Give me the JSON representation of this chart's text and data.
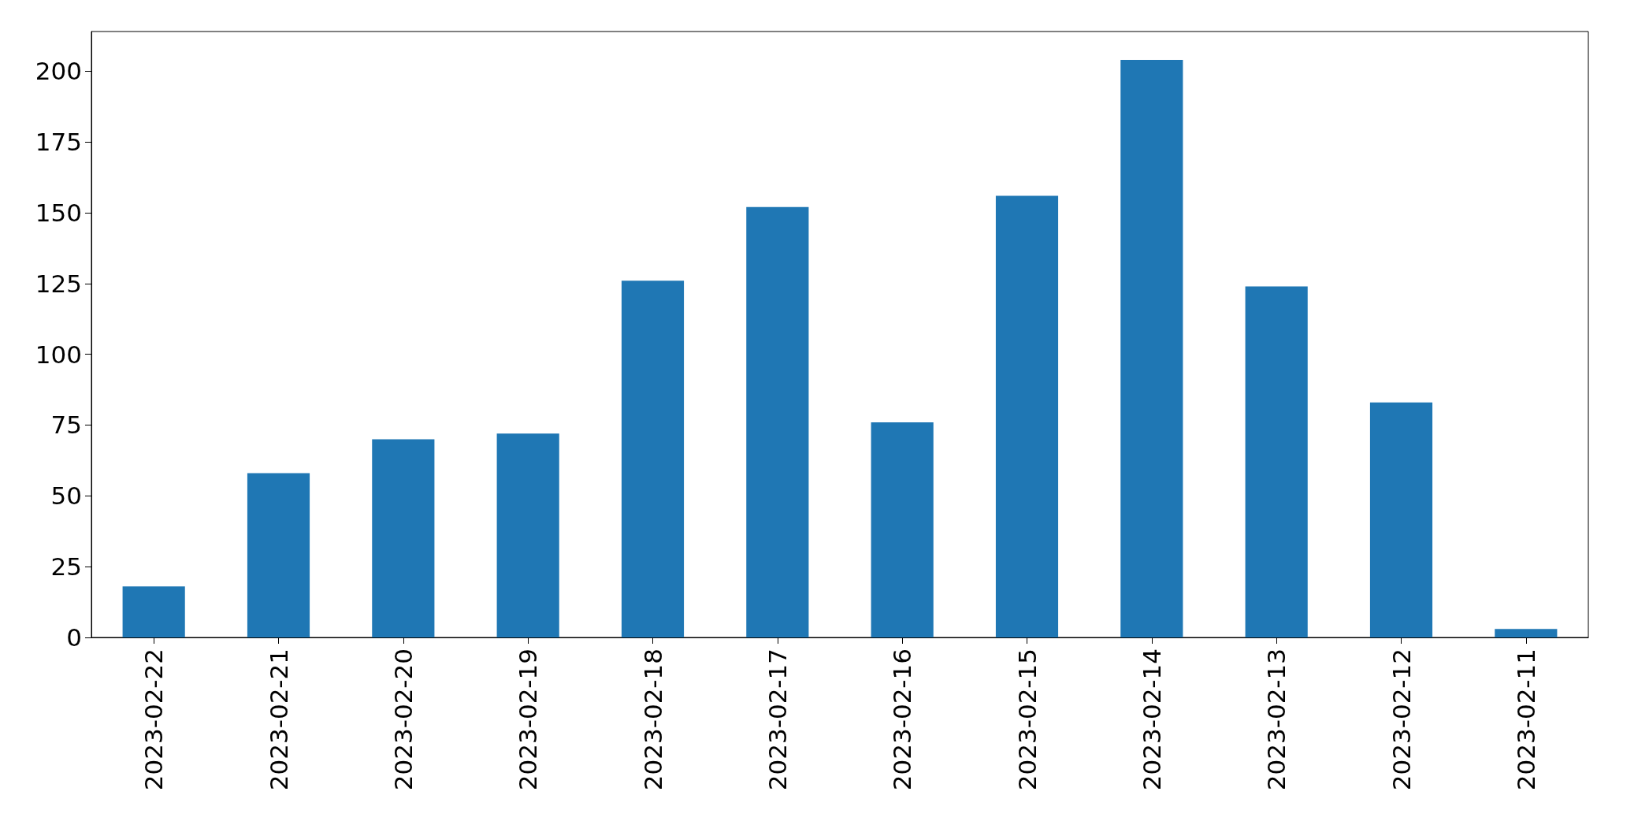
{
  "chart_data": {
    "type": "bar",
    "categories": [
      "2023-02-22",
      "2023-02-21",
      "2023-02-20",
      "2023-02-19",
      "2023-02-18",
      "2023-02-17",
      "2023-02-16",
      "2023-02-15",
      "2023-02-14",
      "2023-02-13",
      "2023-02-12",
      "2023-02-11"
    ],
    "values": [
      18,
      58,
      70,
      72,
      126,
      152,
      76,
      156,
      204,
      124,
      83,
      3
    ],
    "color": "#1f77b4",
    "ylim": [
      0,
      214
    ],
    "yticks": [
      0,
      25,
      50,
      75,
      100,
      125,
      150,
      175,
      200
    ],
    "grid": false
  }
}
